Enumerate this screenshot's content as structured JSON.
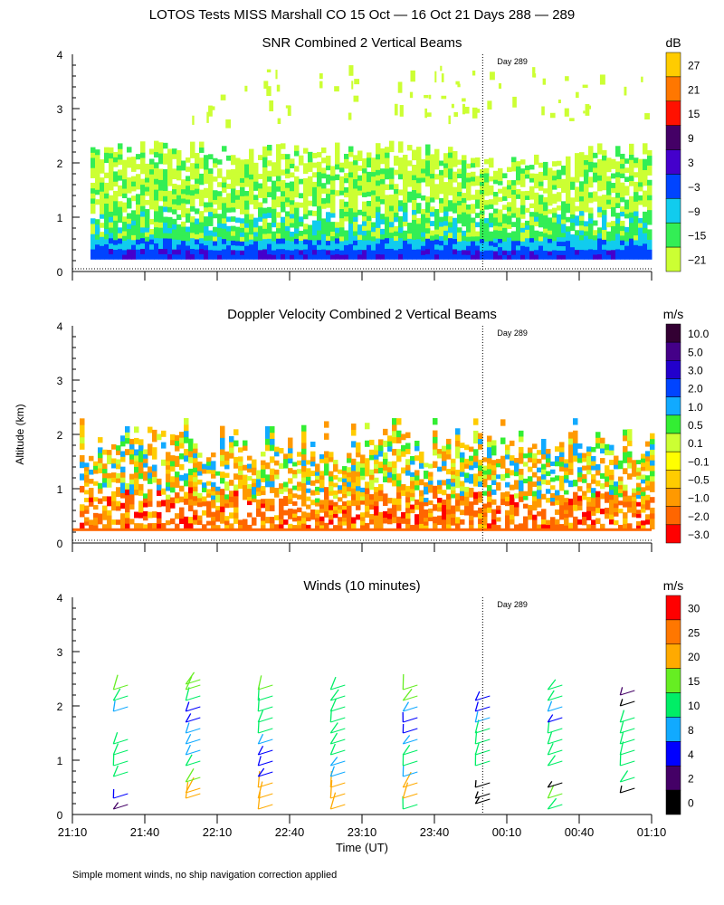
{
  "figure_title": "LOTOS Tests MISS Marshall CO  15 Oct — 16 Oct 21 Days 288 — 289",
  "y_axis_label": "Altitude (km)",
  "x_axis_label": "Time (UT)",
  "footnote": "Simple moment winds, no ship navigation correction applied",
  "x_ticks": [
    "21:10",
    "21:40",
    "22:10",
    "22:40",
    "23:10",
    "23:40",
    "00:10",
    "00:40",
    "01:10"
  ],
  "y_ticks": [
    "0",
    "1",
    "2",
    "3",
    "4"
  ],
  "day_marker_label": "Day 289",
  "colors": {
    "palette": [
      "#ccff33",
      "#33ee55",
      "#11ccee",
      "#0044ff",
      "#4400cc",
      "#440066",
      "#ff1100",
      "#ff7700",
      "#ffcc00"
    ],
    "doppler_palette": [
      "#ff0000",
      "#ff6600",
      "#ff9900",
      "#ffcc00",
      "#ffff00",
      "#ccff33",
      "#33ee33",
      "#11aaff",
      "#0044ff",
      "#2200cc",
      "#440088",
      "#330033"
    ],
    "wind_palette": [
      "#000000",
      "#440066",
      "#0000ff",
      "#11aaff",
      "#00ee66",
      "#66ee22",
      "#ffaa00",
      "#ff7700",
      "#ff0000"
    ]
  },
  "chart_data": [
    {
      "type": "heatmap",
      "title": "SNR Combined 2 Vertical Beams",
      "xlabel": "Time (UT)",
      "ylabel": "Altitude (km)",
      "x_range": [
        "21:10",
        "01:10"
      ],
      "ylim": [
        0,
        4
      ],
      "colorbar_unit": "dB",
      "colorbar_labels": [
        "27",
        "21",
        "15",
        "9",
        "3",
        "−3",
        "−9",
        "−15",
        "−21"
      ],
      "annotation": "Day 289",
      "description_values": {
        "strong_layer_altitude_km": [
          0.2,
          0.5
        ],
        "max_echo_top_km": 2.3
      }
    },
    {
      "type": "heatmap",
      "title": "Doppler Velocity Combined 2 Vertical Beams",
      "xlabel": "Time (UT)",
      "ylabel": "Altitude (km)",
      "x_range": [
        "21:10",
        "01:10"
      ],
      "ylim": [
        0,
        4
      ],
      "colorbar_unit": "m/s",
      "colorbar_labels": [
        "10.0",
        "5.0",
        "3.0",
        "2.0",
        "1.0",
        "0.5",
        "0.1",
        "−0.1",
        "−0.5",
        "−1.0",
        "−2.0",
        "−3.0"
      ],
      "annotation": "Day 289"
    },
    {
      "type": "scatter",
      "title": "Winds (10 minutes)",
      "xlabel": "Time (UT)",
      "ylabel": "Altitude (km)",
      "x_range": [
        "21:10",
        "01:10"
      ],
      "ylim": [
        0,
        4
      ],
      "colorbar_unit": "m/s",
      "colorbar_labels": [
        "30",
        "25",
        "20",
        "15",
        "10",
        "8",
        "4",
        "2",
        "0"
      ],
      "annotation": "Day 289",
      "profile_times": [
        "21:27",
        "21:57",
        "22:27",
        "22:57",
        "23:27",
        "23:57",
        "00:27",
        "00:57"
      ],
      "profiles": [
        {
          "time": "21:27",
          "altitudes_km": [
            0.1,
            0.3,
            0.7,
            0.9,
            1.1,
            1.3,
            1.9,
            2.1,
            2.3
          ],
          "speeds_ms": [
            2,
            4,
            10,
            10,
            11,
            11,
            8,
            14,
            18
          ]
        },
        {
          "time": "21:57",
          "altitudes_km": [
            0.3,
            0.4,
            0.6,
            0.9,
            1.1,
            1.3,
            1.5,
            1.7,
            1.9,
            2.1,
            2.3,
            2.4
          ],
          "speeds_ms": [
            20,
            22,
            18,
            12,
            8,
            8,
            8,
            6,
            6,
            14,
            16,
            16
          ]
        },
        {
          "time": "22:27",
          "altitudes_km": [
            0.1,
            0.3,
            0.5,
            0.7,
            0.9,
            1.1,
            1.3,
            1.5,
            1.7,
            1.9,
            2.1,
            2.3
          ],
          "speeds_ms": [
            22,
            22,
            20,
            6,
            6,
            6,
            8,
            12,
            12,
            14,
            14,
            16
          ]
        },
        {
          "time": "22:57",
          "altitudes_km": [
            0.1,
            0.3,
            0.5,
            0.7,
            0.9,
            1.1,
            1.3,
            1.5,
            1.7,
            1.9,
            2.1,
            2.3
          ],
          "speeds_ms": [
            22,
            24,
            20,
            8,
            8,
            10,
            12,
            12,
            14,
            14,
            14,
            14
          ]
        },
        {
          "time": "23:27",
          "altitudes_km": [
            0.1,
            0.3,
            0.5,
            0.7,
            0.9,
            1.1,
            1.3,
            1.5,
            1.7,
            1.9,
            2.1,
            2.3
          ],
          "speeds_ms": [
            12,
            20,
            22,
            8,
            10,
            10,
            8,
            4,
            6,
            8,
            16,
            18
          ]
        },
        {
          "time": "23:57",
          "altitudes_km": [
            0.2,
            0.3,
            0.5,
            0.9,
            1.1,
            1.3,
            1.5,
            1.7,
            1.9,
            2.1
          ],
          "speeds_ms": [
            0,
            0,
            0,
            12,
            12,
            12,
            14,
            8,
            6,
            6
          ]
        },
        {
          "time": "00:27",
          "altitudes_km": [
            0.1,
            0.3,
            0.5,
            0.9,
            1.1,
            1.3,
            1.5,
            1.7,
            1.9,
            2.1,
            2.3
          ],
          "speeds_ms": [
            14,
            16,
            0,
            12,
            12,
            12,
            14,
            4,
            8,
            10,
            12
          ]
        },
        {
          "time": "00:57",
          "altitudes_km": [
            0.4,
            0.6,
            0.9,
            1.1,
            1.3,
            1.5,
            1.7,
            2.0,
            2.2
          ],
          "speeds_ms": [
            0,
            14,
            14,
            14,
            12,
            12,
            12,
            0,
            2
          ]
        }
      ]
    }
  ]
}
